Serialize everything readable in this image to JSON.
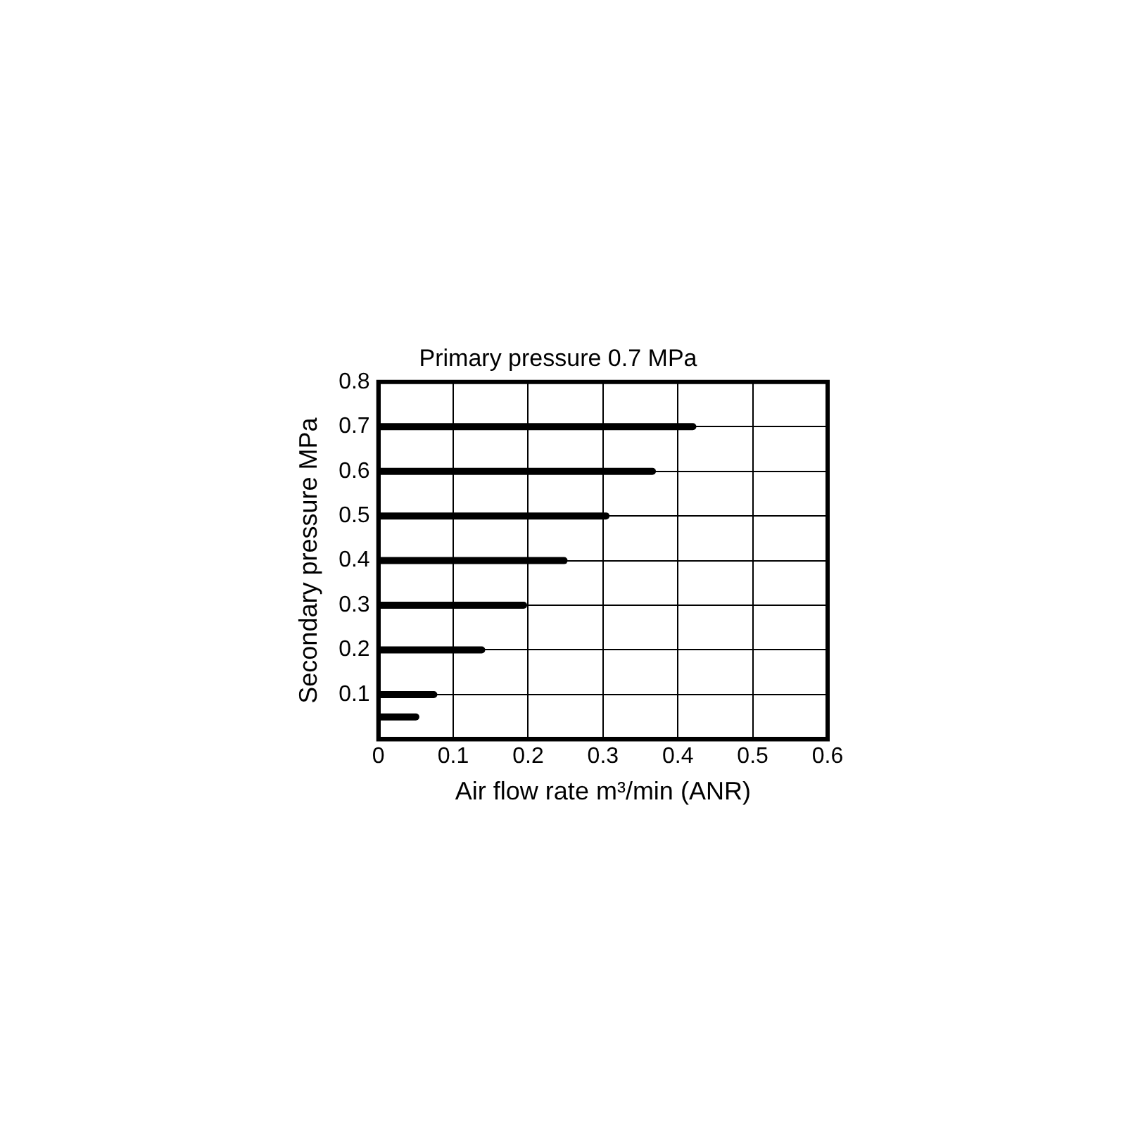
{
  "chart_data": {
    "type": "line",
    "title": "Primary pressure 0.7 MPa",
    "xlabel": "Air flow rate m³/min (ANR)",
    "ylabel": "Secondary pressure MPa",
    "series": [
      {
        "color": "#000000",
        "x": [
          0,
          0.42
        ],
        "values": [
          0.7,
          0.7
        ]
      },
      {
        "color": "#000000",
        "x": [
          0,
          0.366
        ],
        "values": [
          0.6,
          0.6
        ]
      },
      {
        "color": "#000000",
        "x": [
          0,
          0.304
        ],
        "values": [
          0.5,
          0.5
        ]
      },
      {
        "color": "#000000",
        "x": [
          0,
          0.248
        ],
        "values": [
          0.4,
          0.4
        ]
      },
      {
        "color": "#000000",
        "x": [
          0,
          0.194
        ],
        "values": [
          0.3,
          0.3
        ]
      },
      {
        "color": "#000000",
        "x": [
          0,
          0.138
        ],
        "values": [
          0.2,
          0.2
        ]
      },
      {
        "color": "#000000",
        "x": [
          0,
          0.074
        ],
        "values": [
          0.1,
          0.1
        ]
      },
      {
        "color": "#000000",
        "x": [
          0,
          0.05
        ],
        "values": [
          0.05,
          0.05
        ]
      }
    ],
    "xlim": [
      0,
      0.6
    ],
    "xticks": [
      0,
      0.1,
      0.2,
      0.3,
      0.4,
      0.5,
      0.6
    ],
    "ylim": [
      0,
      0.8
    ],
    "yticks": [
      0.1,
      0.2,
      0.3,
      0.4,
      0.5,
      0.6,
      0.7,
      0.8
    ],
    "grid": true,
    "legend": false,
    "marker": "none",
    "line_style": "solid"
  }
}
